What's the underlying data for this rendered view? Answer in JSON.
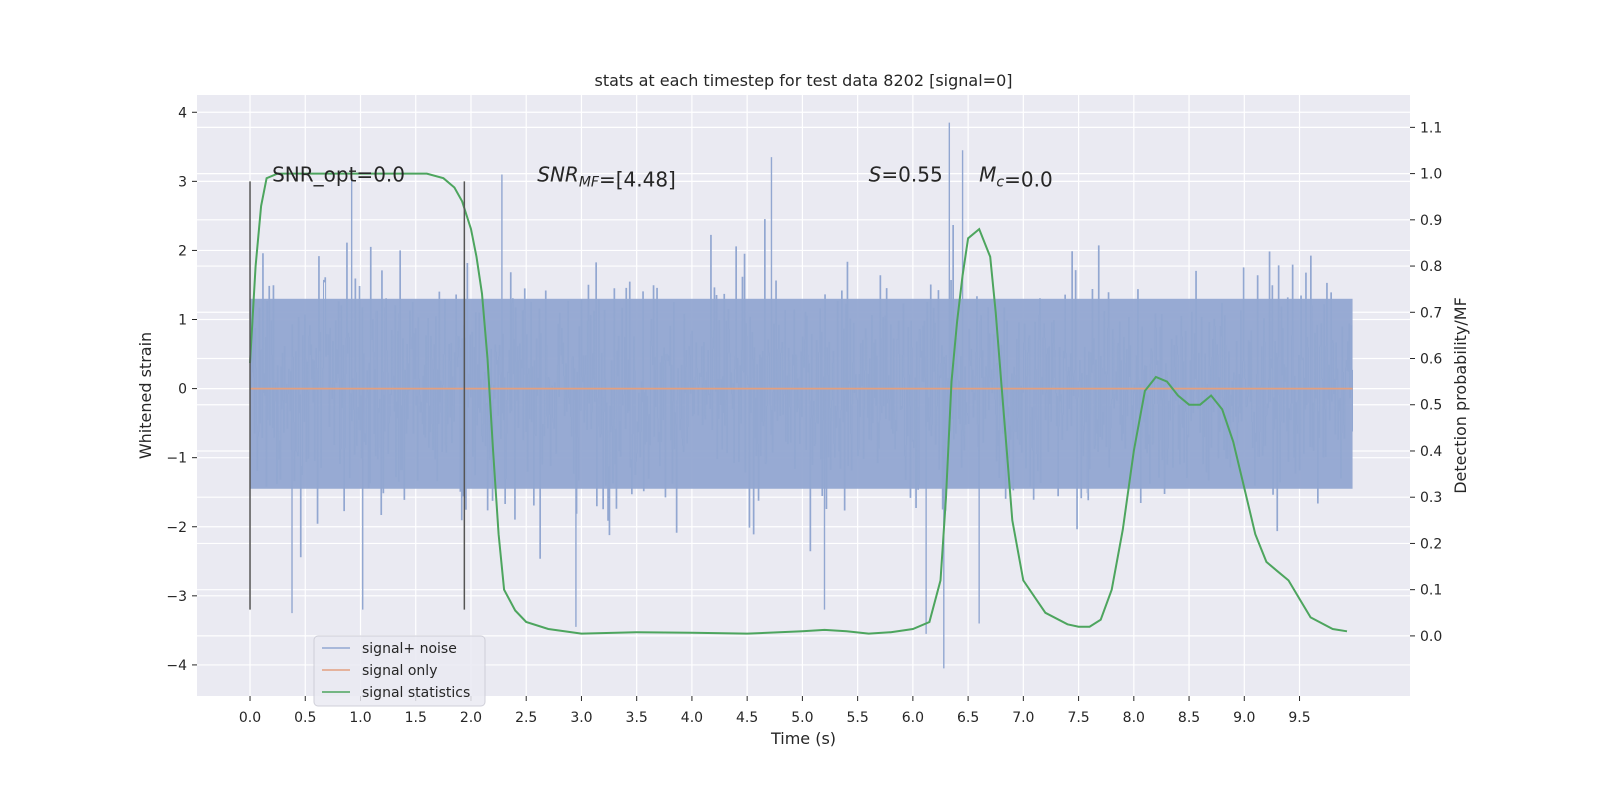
{
  "chart_data": {
    "type": "line",
    "title": "stats at each timestep for test data 8202 [signal=0]",
    "xlabel": "Time (s)",
    "ylabel": "Whitened strain",
    "y2label": "Detection probability/MF",
    "xlim": [
      -0.48,
      10.5
    ],
    "ylim": [
      -4.45,
      4.25
    ],
    "y2lim": [
      -0.13,
      1.17
    ],
    "xticks": [
      0.0,
      0.5,
      1.0,
      1.5,
      2.0,
      2.5,
      3.0,
      3.5,
      4.0,
      4.5,
      5.0,
      5.5,
      6.0,
      6.5,
      7.0,
      7.5,
      8.0,
      8.5,
      9.0,
      9.5
    ],
    "xtick_labels": [
      "0.0",
      "0.5",
      "1.0",
      "1.5",
      "2.0",
      "2.5",
      "3.0",
      "3.5",
      "4.0",
      "4.5",
      "5.0",
      "5.5",
      "6.0",
      "6.5",
      "7.0",
      "7.5",
      "8.0",
      "8.5",
      "9.0",
      "9.5"
    ],
    "yticks": [
      -4,
      -3,
      -2,
      -1,
      0,
      1,
      2,
      3,
      4
    ],
    "ytick_labels": [
      "−4",
      "−3",
      "−2",
      "−1",
      "0",
      "1",
      "2",
      "3",
      "4"
    ],
    "y2ticks": [
      0.0,
      0.1,
      0.2,
      0.3,
      0.4,
      0.5,
      0.6,
      0.7,
      0.8,
      0.9,
      1.0,
      1.1
    ],
    "y2tick_labels": [
      "0.0",
      "0.1",
      "0.2",
      "0.3",
      "0.4",
      "0.5",
      "0.6",
      "0.7",
      "0.8",
      "0.9",
      "1.0",
      "1.1"
    ],
    "grid": true,
    "legend_position": "lower-left",
    "annotations": [
      {
        "id": "snr-opt",
        "x": 0.2,
        "y": 3.1,
        "parts": [
          {
            "t": "SNR_opt=0.0"
          }
        ]
      },
      {
        "id": "snr-mf",
        "x": 2.6,
        "y": 3.1,
        "parts": [
          {
            "t": "SNR",
            "i": true
          },
          {
            "t": "MF",
            "i": true,
            "sub": true
          },
          {
            "t": "=[4.48]"
          }
        ]
      },
      {
        "id": "s",
        "x": 5.6,
        "y": 3.1,
        "parts": [
          {
            "t": "S",
            "i": true
          },
          {
            "t": "=0.55"
          }
        ]
      },
      {
        "id": "mc",
        "x": 6.6,
        "y": 3.1,
        "parts": [
          {
            "t": "M",
            "i": true
          },
          {
            "t": "c",
            "i": true,
            "sub": true
          },
          {
            "t": "=0.0"
          }
        ]
      }
    ],
    "markers": [
      {
        "x": 0.0,
        "y_from": -3.2,
        "y_to": 3.0
      },
      {
        "x": 1.94,
        "y_from": -3.2,
        "y_to": 3.0
      }
    ],
    "series": [
      {
        "name": "signal+ noise",
        "kind": "noise",
        "x_range": [
          0.0,
          9.98
        ],
        "band": [
          -1.45,
          1.3
        ],
        "extreme_points": [
          {
            "x": 0.38,
            "y": -3.25
          },
          {
            "x": 0.92,
            "y": 3.05
          },
          {
            "x": 1.02,
            "y": -3.2
          },
          {
            "x": 2.28,
            "y": 3.1
          },
          {
            "x": 2.95,
            "y": -3.45
          },
          {
            "x": 4.72,
            "y": 3.35
          },
          {
            "x": 6.12,
            "y": -3.55
          },
          {
            "x": 6.33,
            "y": 3.85
          },
          {
            "x": 6.28,
            "y": -4.05
          },
          {
            "x": 6.45,
            "y": 3.45
          },
          {
            "x": 6.6,
            "y": -3.4
          },
          {
            "x": 5.2,
            "y": -3.2
          }
        ],
        "color": "#92a7d1"
      },
      {
        "name": "signal only",
        "kind": "line",
        "x": [
          0.0,
          9.98
        ],
        "y": [
          0.0,
          0.0
        ],
        "color": "#e3a07f"
      },
      {
        "name": "signal statistics",
        "kind": "line",
        "axis": "right",
        "x": [
          0.0,
          0.05,
          0.1,
          0.15,
          0.25,
          0.4,
          0.6,
          0.8,
          1.0,
          1.2,
          1.4,
          1.6,
          1.75,
          1.85,
          1.92,
          2.0,
          2.05,
          2.1,
          2.15,
          2.2,
          2.25,
          2.3,
          2.4,
          2.5,
          2.7,
          3.0,
          3.5,
          4.0,
          4.5,
          5.0,
          5.2,
          5.4,
          5.6,
          5.8,
          6.0,
          6.15,
          6.25,
          6.3,
          6.35,
          6.4,
          6.45,
          6.5,
          6.6,
          6.7,
          6.75,
          6.8,
          6.85,
          6.9,
          7.0,
          7.2,
          7.4,
          7.5,
          7.6,
          7.7,
          7.8,
          7.9,
          8.0,
          8.1,
          8.2,
          8.3,
          8.4,
          8.5,
          8.6,
          8.7,
          8.8,
          8.9,
          9.0,
          9.1,
          9.2,
          9.3,
          9.4,
          9.5,
          9.6,
          9.8,
          9.93
        ],
        "y": [
          0.59,
          0.8,
          0.93,
          0.99,
          1.0,
          1.0,
          1.0,
          1.0,
          1.0,
          1.0,
          1.0,
          1.0,
          0.99,
          0.97,
          0.94,
          0.88,
          0.82,
          0.74,
          0.6,
          0.4,
          0.22,
          0.1,
          0.055,
          0.03,
          0.015,
          0.005,
          0.008,
          0.007,
          0.005,
          0.01,
          0.013,
          0.01,
          0.005,
          0.008,
          0.015,
          0.03,
          0.12,
          0.3,
          0.55,
          0.68,
          0.78,
          0.86,
          0.88,
          0.82,
          0.7,
          0.55,
          0.4,
          0.25,
          0.12,
          0.05,
          0.025,
          0.02,
          0.02,
          0.035,
          0.1,
          0.23,
          0.4,
          0.53,
          0.56,
          0.55,
          0.52,
          0.5,
          0.5,
          0.52,
          0.49,
          0.42,
          0.32,
          0.22,
          0.16,
          0.14,
          0.12,
          0.08,
          0.04,
          0.015,
          0.01
        ],
        "color": "#4da55e"
      }
    ]
  }
}
